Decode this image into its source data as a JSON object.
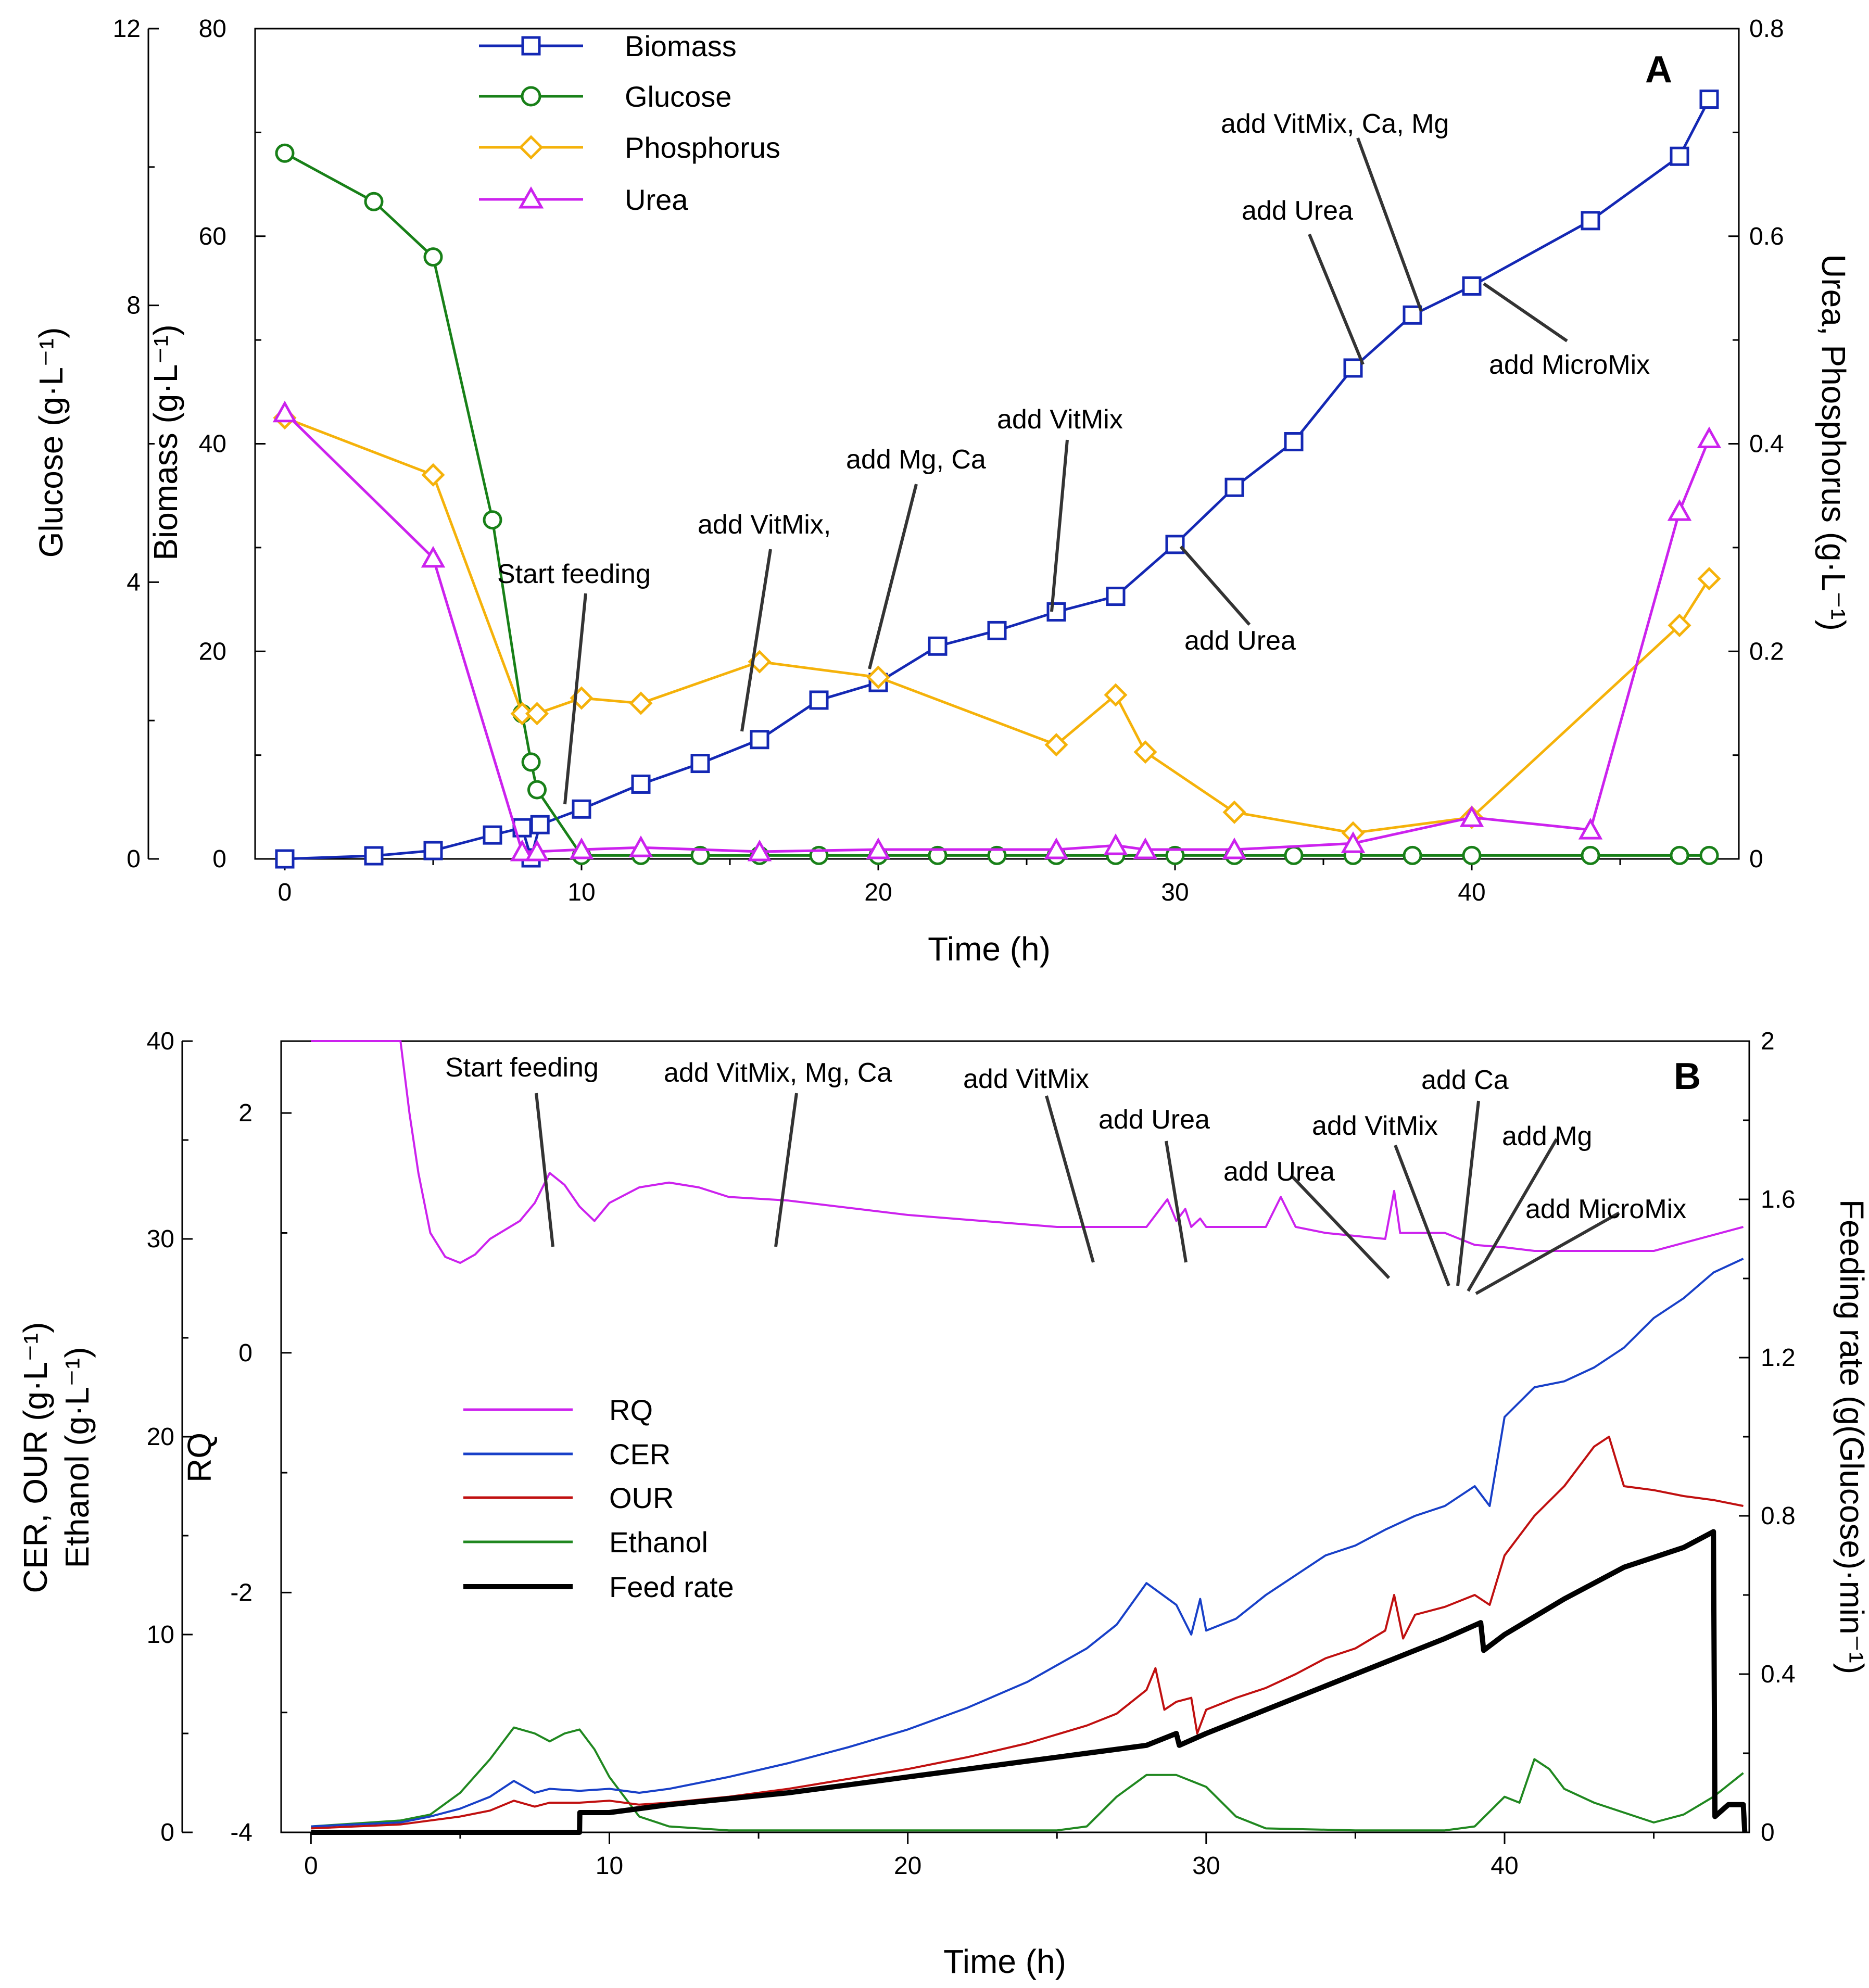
{
  "colors": {
    "biomass": "#1428b4",
    "glucose": "#188018",
    "phosphorus": "#f5b20a",
    "urea": "#cc22ee",
    "rq": "#cc22ee",
    "cer": "#1840c8",
    "our": "#c01010",
    "ethanol": "#208820",
    "feed": "#000000",
    "axis": "#000000",
    "annotation_line": "#333333"
  },
  "chart_data": [
    {
      "panel_label": "A",
      "type": "line",
      "xlabel": "Time (h)",
      "xlim": [
        -1,
        49
      ],
      "xticks": [
        0,
        10,
        20,
        30,
        40
      ],
      "axes": {
        "glucose": {
          "label": "Glucose (g·L⁻¹)",
          "lim": [
            0,
            12
          ],
          "ticks": [
            0,
            4,
            8,
            12
          ]
        },
        "biomass": {
          "label": "Biomass (g·L⁻¹)",
          "lim": [
            0,
            80
          ],
          "ticks": [
            0,
            20,
            40,
            60,
            80
          ]
        },
        "urea_p": {
          "label": "Urea, Phosphorus (g·L⁻¹)",
          "lim": [
            0,
            0.8
          ],
          "ticks": [
            0,
            0.2,
            0.4,
            0.6,
            0.8
          ]
        }
      },
      "series": [
        {
          "name": "Biomass",
          "axis": "biomass",
          "marker": "square",
          "color_key": "biomass",
          "x": [
            0,
            3,
            5,
            7,
            8,
            8.3,
            8.6,
            10,
            12,
            14,
            16,
            18,
            20,
            22,
            24,
            26,
            28,
            30,
            32,
            34,
            36,
            38,
            40,
            44,
            47,
            48
          ],
          "values": [
            0,
            0.3,
            0.8,
            2.3,
            3,
            0.1,
            3.3,
            4.8,
            7.2,
            9.2,
            11.5,
            15.3,
            17,
            20.5,
            22,
            23.8,
            25.3,
            30.3,
            35.8,
            40.2,
            47.3,
            52.4,
            55.2,
            61.5,
            67.7,
            73.2
          ]
        },
        {
          "name": "Glucose",
          "axis": "glucose",
          "marker": "circle",
          "color_key": "glucose",
          "x": [
            0,
            3,
            5,
            7,
            8,
            8.3,
            8.5,
            10,
            12,
            14,
            16,
            18,
            20,
            22,
            24,
            26,
            28,
            30,
            32,
            34,
            36,
            38,
            40,
            44,
            47,
            48
          ],
          "values": [
            10.2,
            9.5,
            8.7,
            4.9,
            2.1,
            1.4,
            1.0,
            0.05,
            0.05,
            0.05,
            0.05,
            0.05,
            0.05,
            0.05,
            0.05,
            0.05,
            0.05,
            0.05,
            0.05,
            0.05,
            0.05,
            0.05,
            0.05,
            0.05,
            0.05,
            0.05
          ]
        },
        {
          "name": "Phosphorus",
          "axis": "urea_p",
          "marker": "diamond",
          "color_key": "phosphorus",
          "x": [
            0,
            5,
            8,
            8.5,
            10,
            12,
            16,
            20,
            26,
            28,
            29,
            32,
            36,
            40,
            47,
            48
          ],
          "values": [
            0.425,
            0.37,
            0.14,
            0.14,
            0.155,
            0.15,
            0.19,
            0.175,
            0.11,
            0.158,
            0.103,
            0.045,
            0.025,
            0.04,
            0.225,
            0.27
          ]
        },
        {
          "name": "Urea",
          "axis": "urea_p",
          "marker": "triangle",
          "color_key": "urea",
          "x": [
            0,
            5,
            8,
            8.5,
            10,
            12,
            16,
            20,
            26,
            28,
            29,
            32,
            36,
            40,
            44,
            47,
            48
          ],
          "values": [
            0.43,
            0.29,
            0.007,
            0.007,
            0.009,
            0.011,
            0.007,
            0.009,
            0.009,
            0.013,
            0.009,
            0.009,
            0.015,
            0.04,
            0.028,
            0.335,
            0.405
          ]
        }
      ],
      "legend": [
        "Biomass",
        "Glucose",
        "Phosphorus",
        "Urea"
      ],
      "annotations": [
        {
          "text": "Start feeding",
          "x": 10
        },
        {
          "text": "add VitMix,",
          "x": 16
        },
        {
          "text": "add Mg, Ca",
          "x": 20
        },
        {
          "text": "add VitMix",
          "x": 26
        },
        {
          "text": "add Urea",
          "x": 30
        },
        {
          "text": "add Urea",
          "x": 36
        },
        {
          "text": "add VitMix, Ca, Mg",
          "x": 38
        },
        {
          "text": "add MicroMix",
          "x": 40
        }
      ]
    },
    {
      "panel_label": "B",
      "type": "line",
      "xlabel": "Time (h)",
      "xlim": [
        -1,
        48.2
      ],
      "xticks": [
        0,
        10,
        20,
        30,
        40
      ],
      "axes": {
        "conc": {
          "label1": "CER, OUR (g·L⁻¹)",
          "label2": "Ethanol (g·L⁻¹)",
          "lim": [
            0,
            40
          ],
          "ticks": [
            0,
            10,
            20,
            30,
            40
          ]
        },
        "rq": {
          "label": "RQ",
          "lim": [
            -4,
            2.6
          ],
          "ticks": [
            -4,
            -2,
            0,
            2
          ]
        },
        "feed": {
          "label": "Feeding rate (g(Glucose)·min⁻¹)",
          "lim": [
            0,
            2
          ],
          "ticks": [
            0,
            0.4,
            0.8,
            1.2,
            1.6,
            2
          ]
        }
      },
      "series": [
        {
          "name": "RQ",
          "axis": "rq",
          "color_key": "rq",
          "x": [
            0,
            3,
            3.3,
            3.6,
            4,
            4.5,
            5,
            5.5,
            6,
            7,
            7.5,
            8,
            8.5,
            9,
            9.5,
            10,
            11,
            12,
            13,
            14,
            16,
            20,
            25,
            28,
            28.7,
            29,
            29.3,
            29.5,
            29.8,
            30,
            32,
            32.5,
            33,
            34,
            36,
            36.3,
            36.5,
            38,
            39,
            40,
            41,
            45,
            48
          ],
          "values": [
            2.6,
            2.6,
            2.0,
            1.5,
            1.0,
            0.8,
            0.75,
            0.82,
            0.95,
            1.1,
            1.25,
            1.5,
            1.4,
            1.22,
            1.1,
            1.25,
            1.38,
            1.42,
            1.38,
            1.3,
            1.27,
            1.15,
            1.05,
            1.05,
            1.28,
            1.1,
            1.2,
            1.05,
            1.12,
            1.05,
            1.05,
            1.3,
            1.05,
            1.0,
            0.95,
            1.35,
            1.0,
            1.0,
            0.9,
            0.88,
            0.85,
            0.85,
            1.05
          ]
        },
        {
          "name": "CER",
          "axis": "conc",
          "color_key": "cer",
          "x": [
            0,
            3,
            4,
            5,
            6,
            6.8,
            7.5,
            8,
            9,
            10,
            11,
            12,
            14,
            16,
            18,
            20,
            22,
            24,
            26,
            27,
            28,
            29,
            29.5,
            29.8,
            30,
            31,
            32,
            33,
            34,
            35,
            36,
            37,
            38,
            39,
            39.5,
            40,
            41,
            42,
            43,
            44,
            45,
            46,
            47,
            48
          ],
          "values": [
            0.3,
            0.5,
            0.8,
            1.2,
            1.8,
            2.6,
            2.0,
            2.2,
            2.1,
            2.2,
            2.0,
            2.2,
            2.8,
            3.5,
            4.3,
            5.2,
            6.3,
            7.6,
            9.3,
            10.5,
            12.6,
            11.5,
            10.0,
            11.8,
            10.2,
            10.8,
            12.0,
            13.0,
            14.0,
            14.5,
            15.3,
            16.0,
            16.5,
            17.5,
            16.5,
            21.0,
            22.5,
            22.8,
            23.5,
            24.5,
            26.0,
            27.0,
            28.3,
            29.0
          ]
        },
        {
          "name": "OUR",
          "axis": "conc",
          "color_key": "our",
          "x": [
            0,
            3,
            4,
            5,
            6,
            6.8,
            7.5,
            8,
            9,
            10,
            11,
            12,
            14,
            16,
            18,
            20,
            22,
            24,
            26,
            27,
            28,
            28.3,
            28.6,
            29,
            29.5,
            29.7,
            30,
            31,
            32,
            33,
            34,
            35,
            36,
            36.3,
            36.6,
            37,
            38,
            39,
            39.5,
            40,
            41,
            42,
            43,
            43.5,
            44,
            45,
            46,
            47,
            48
          ],
          "values": [
            0.2,
            0.4,
            0.6,
            0.8,
            1.1,
            1.6,
            1.3,
            1.5,
            1.5,
            1.6,
            1.4,
            1.5,
            1.8,
            2.2,
            2.7,
            3.2,
            3.8,
            4.5,
            5.4,
            6.0,
            7.2,
            8.3,
            6.2,
            6.6,
            6.8,
            5.0,
            6.2,
            6.8,
            7.3,
            8.0,
            8.8,
            9.3,
            10.2,
            12.0,
            9.8,
            11.0,
            11.4,
            12.0,
            11.5,
            14.0,
            16.0,
            17.5,
            19.5,
            20.0,
            17.5,
            17.3,
            17.0,
            16.8,
            16.5
          ]
        },
        {
          "name": "Ethanol",
          "axis": "conc",
          "color_key": "ethanol",
          "x": [
            0,
            2,
            3,
            4,
            5,
            6,
            6.8,
            7.5,
            8,
            8.5,
            9,
            9.5,
            10,
            11,
            12,
            14,
            20,
            25,
            26,
            27,
            28,
            29,
            30,
            31,
            32,
            35,
            38,
            39,
            40,
            40.5,
            41,
            41.5,
            42,
            43,
            44,
            45,
            46,
            47,
            48
          ],
          "values": [
            0.3,
            0.5,
            0.6,
            0.9,
            2.0,
            3.7,
            5.3,
            5.0,
            4.6,
            5.0,
            5.2,
            4.2,
            2.8,
            0.8,
            0.3,
            0.1,
            0.1,
            0.1,
            0.3,
            1.8,
            2.9,
            2.9,
            2.3,
            0.8,
            0.2,
            0.1,
            0.1,
            0.3,
            1.8,
            1.5,
            3.7,
            3.2,
            2.2,
            1.5,
            1.0,
            0.5,
            0.9,
            1.8,
            3.0
          ]
        },
        {
          "name": "Feed rate",
          "axis": "feed",
          "color_key": "feed",
          "x": [
            0,
            9,
            9.01,
            10,
            12,
            14,
            16,
            18,
            20,
            22,
            24,
            26,
            28,
            29,
            29.1,
            30,
            32,
            34,
            36,
            38,
            39.2,
            39.3,
            40,
            42,
            44,
            46,
            47,
            47.05,
            47.5,
            48,
            48.05
          ],
          "values": [
            0,
            0,
            0.05,
            0.05,
            0.07,
            0.085,
            0.1,
            0.12,
            0.14,
            0.16,
            0.18,
            0.2,
            0.22,
            0.25,
            0.22,
            0.25,
            0.31,
            0.37,
            0.43,
            0.49,
            0.53,
            0.46,
            0.5,
            0.59,
            0.67,
            0.72,
            0.76,
            0.04,
            0.07,
            0.07,
            0
          ]
        }
      ],
      "legend": [
        "RQ",
        "CER",
        "OUR",
        "Ethanol",
        "Feed rate"
      ],
      "annotations": [
        {
          "text": "Start feeding",
          "x": 9
        },
        {
          "text": "add VitMix, Mg, Ca",
          "x": 16
        },
        {
          "text": "add VitMix",
          "x": 26.5
        },
        {
          "text": "add Urea",
          "x": 29.7
        },
        {
          "text": "add Urea",
          "x": 36
        },
        {
          "text": "add VitMix",
          "x": 38
        },
        {
          "text": "add Ca",
          "x": 38.5
        },
        {
          "text": "add Mg",
          "x": 38.8
        },
        {
          "text": "add MicroMix",
          "x": 39.5
        }
      ]
    }
  ]
}
